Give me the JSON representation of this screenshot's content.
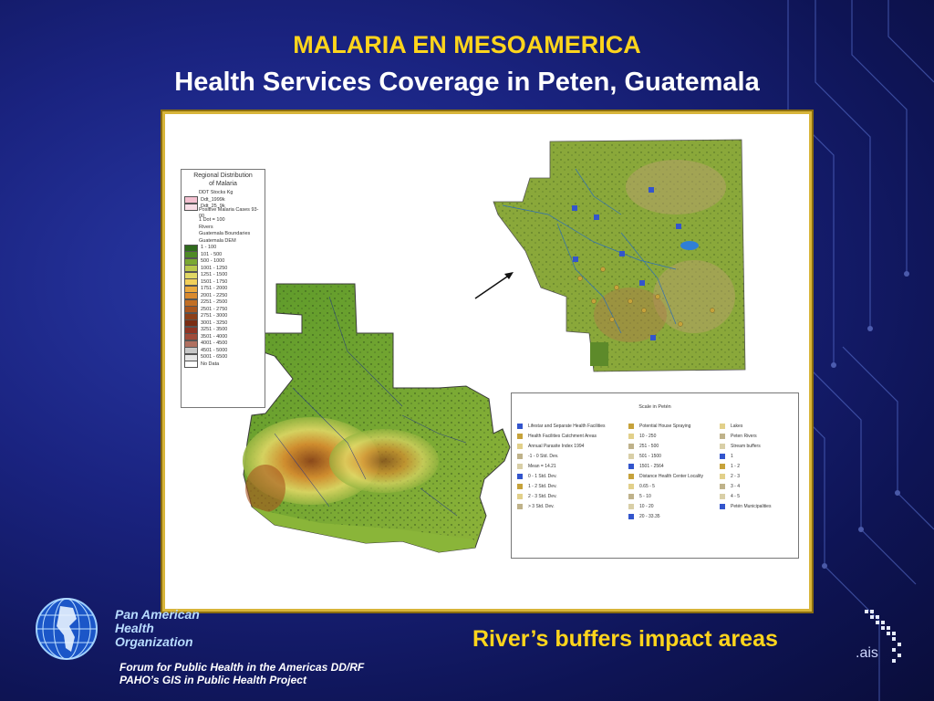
{
  "slide": {
    "title": "MALARIA EN MESOAMERICA",
    "subtitle": "Health Services Coverage in Peten, Guatemala",
    "caption": "River’s buffers impact areas"
  },
  "organization": {
    "name_line1": "Pan American",
    "name_line2": "Health",
    "name_line3": "Organization",
    "forum_line1": "Forum for Public Health in the Americas DD/RF",
    "forum_line2": "PAHO’s GIS in Public Health Project"
  },
  "ais_logo": ".ais",
  "map_legend_left": {
    "title_line1": "Regional Distribution",
    "title_line2": "of Malaria",
    "items": [
      {
        "label": "DDT Stocks Kg",
        "color": ""
      },
      {
        "label": "Ddt_1999k",
        "color": "#f4c0d0"
      },
      {
        "label": "Ddt_25_9k",
        "color": "#f8dde6"
      },
      {
        "label": "Positive Malaria Cases 93-00",
        "color": ""
      },
      {
        "label": "1 Dot = 100",
        "color": ""
      },
      {
        "label": "Rivers",
        "color": ""
      },
      {
        "label": "Guatemala Boundaries",
        "color": ""
      },
      {
        "label": "Guatemala DEM",
        "color": ""
      },
      {
        "label": "1 - 100",
        "color": "#2f6b1c"
      },
      {
        "label": "101 - 500",
        "color": "#4f8a26"
      },
      {
        "label": "500 - 1000",
        "color": "#7aa833"
      },
      {
        "label": "1001 - 1250",
        "color": "#b9c84c"
      },
      {
        "label": "1251 - 1500",
        "color": "#e0d765"
      },
      {
        "label": "1501 - 1750",
        "color": "#f1cf5a"
      },
      {
        "label": "1751 - 2000",
        "color": "#eaa93e"
      },
      {
        "label": "2001 - 2250",
        "color": "#d98a2e"
      },
      {
        "label": "2251 - 2500",
        "color": "#c26f25"
      },
      {
        "label": "2501 - 2750",
        "color": "#a8551e"
      },
      {
        "label": "2751 - 3000",
        "color": "#8d3f18"
      },
      {
        "label": "3001 - 3250",
        "color": "#7a2d14"
      },
      {
        "label": "3251 - 3500",
        "color": "#8f3525"
      },
      {
        "label": "3501 - 4000",
        "color": "#a04b3a"
      },
      {
        "label": "4001 - 4500",
        "color": "#b07060"
      },
      {
        "label": "4501 - 5000",
        "color": "#c8c8c8"
      },
      {
        "label": "5001 - 6500",
        "color": "#e6e6e6"
      },
      {
        "label": "No Data",
        "color": "#ffffff"
      }
    ]
  },
  "map_legend_right": {
    "title": "Scale in Petén",
    "col1": [
      "Lifestar and Separate Health Facilities",
      "Health Facilities Catchment Areas",
      "Annual Parasite Index 1994",
      "-1 - 0 Std. Dev.",
      "Mean = 14.21",
      "0 - 1 Std. Dev.",
      "1 - 2 Std. Dev.",
      "2 - 3 Std. Dev.",
      "> 3 Std. Dev."
    ],
    "col2": [
      "Potential House Spraying",
      "10 - 250",
      "251 - 500",
      "501 - 1500",
      "1501 - 2564",
      "Distance Health Center Locality",
      "0.65 - 5",
      "5 - 10",
      "10 - 20",
      "20 - 33.35"
    ],
    "col3": [
      "Lakes",
      "Peten Rivers",
      "Stream buffers",
      "1",
      "1 - 2",
      "2 - 3",
      "3 - 4",
      "4 - 5",
      "Petén Municipalities"
    ]
  },
  "colors": {
    "title": "#ffd51c",
    "subtitle": "#ffffff",
    "caption": "#ffd51c",
    "org_text": "#b8dcff",
    "frame_border": "#d8b53a"
  }
}
